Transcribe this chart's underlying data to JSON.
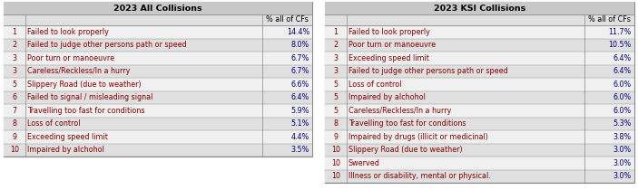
{
  "left_title": "2023 All Collisions",
  "right_title": "2023 KSI Collisions",
  "col_header": "% all of CFs",
  "left_rows": [
    {
      "rank": "1",
      "factor": "Failed to look properly",
      "pct": "14.4%"
    },
    {
      "rank": "2",
      "factor": "Failed to judge other persons path or speed",
      "pct": "8.0%"
    },
    {
      "rank": "3",
      "factor": "Poor turn or manoeuvre",
      "pct": "6.7%"
    },
    {
      "rank": "3",
      "factor": "Careless/Reckless/In a hurry",
      "pct": "6.7%"
    },
    {
      "rank": "5",
      "factor": "Slippery Road (due to weather)",
      "pct": "6.6%"
    },
    {
      "rank": "6",
      "factor": "Failed to signal / misleading signal",
      "pct": "6.4%"
    },
    {
      "rank": "7",
      "factor": "Travelling too fast for conditions",
      "pct": "5.9%"
    },
    {
      "rank": "8",
      "factor": "Loss of control",
      "pct": "5.1%"
    },
    {
      "rank": "9",
      "factor": "Exceeding speed limit",
      "pct": "4.4%"
    },
    {
      "rank": "10",
      "factor": "Impaired by alchohol",
      "pct": "3.5%"
    }
  ],
  "right_rows": [
    {
      "rank": "1",
      "factor": "Failed to look properly",
      "pct": "11.7%"
    },
    {
      "rank": "2",
      "factor": "Poor turn or manoeuvre",
      "pct": "10.5%"
    },
    {
      "rank": "3",
      "factor": "Exceeding speed limit",
      "pct": "6.4%"
    },
    {
      "rank": "3",
      "factor": "Failed to judge other persons path or speed",
      "pct": "6.4%"
    },
    {
      "rank": "5",
      "factor": "Loss of control",
      "pct": "6.0%"
    },
    {
      "rank": "5",
      "factor": "Impaired by alchohol",
      "pct": "6.0%"
    },
    {
      "rank": "5",
      "factor": "Careless/Reckless/In a hurry",
      "pct": "6.0%"
    },
    {
      "rank": "8",
      "factor": "Travelling too fast for conditions",
      "pct": "5.3%"
    },
    {
      "rank": "9",
      "factor": "Impaired by drugs (illicit or medicinal)",
      "pct": "3.8%"
    },
    {
      "rank": "10",
      "factor": "Slippery Road (due to weather)",
      "pct": "3.0%"
    },
    {
      "rank": "10",
      "factor": "Swerved",
      "pct": "3.0%"
    },
    {
      "rank": "10",
      "factor": "Illness or disability, mental or physical.",
      "pct": "3.0%"
    }
  ],
  "title_bg": "#c8c8c8",
  "header_bg": "#e0e0e0",
  "row_bg_light": "#f0f0f0",
  "row_bg_dark": "#e0e0e0",
  "border_color": "#888888",
  "text_color_rank": "#8B0000",
  "text_color_factor": "#8B0000",
  "text_color_pct": "#00008B",
  "title_text_color": "#000000",
  "header_text_color": "#000000",
  "font_size": 5.8,
  "title_font_size": 6.8
}
